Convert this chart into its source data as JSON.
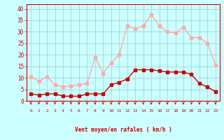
{
  "hours": [
    0,
    1,
    2,
    3,
    4,
    5,
    6,
    7,
    8,
    9,
    10,
    11,
    12,
    13,
    14,
    15,
    16,
    17,
    18,
    19,
    20,
    21,
    22,
    23
  ],
  "wind_avg": [
    3,
    2.5,
    3,
    3,
    2,
    2,
    2,
    3,
    3,
    3,
    7,
    8,
    9.5,
    13.5,
    13.5,
    13.5,
    13,
    12.5,
    12.5,
    12.5,
    11.5,
    7.5,
    6,
    4
  ],
  "wind_gust": [
    10.5,
    8.5,
    10.5,
    7,
    6,
    6.5,
    7,
    7.5,
    19,
    12,
    16.5,
    20,
    32.5,
    31.5,
    32.5,
    37.5,
    32.5,
    30,
    29.5,
    32,
    27.5,
    27.5,
    25,
    15.5
  ],
  "wind_avg_color": "#cc0000",
  "wind_gust_color": "#ffaaaa",
  "bg_color": "#ccffff",
  "grid_color": "#99cccc",
  "axis_color": "#cc0000",
  "tick_color": "#cc0000",
  "label_color": "#cc0000",
  "ylabel_ticks": [
    0,
    5,
    10,
    15,
    20,
    25,
    30,
    35,
    40
  ],
  "ylim": [
    0,
    42
  ],
  "xlim": [
    -0.5,
    23.5
  ],
  "xlabel": "Vent moyen/en rafales ( km/h )",
  "marker_size": 2.5,
  "line_width": 1.0
}
